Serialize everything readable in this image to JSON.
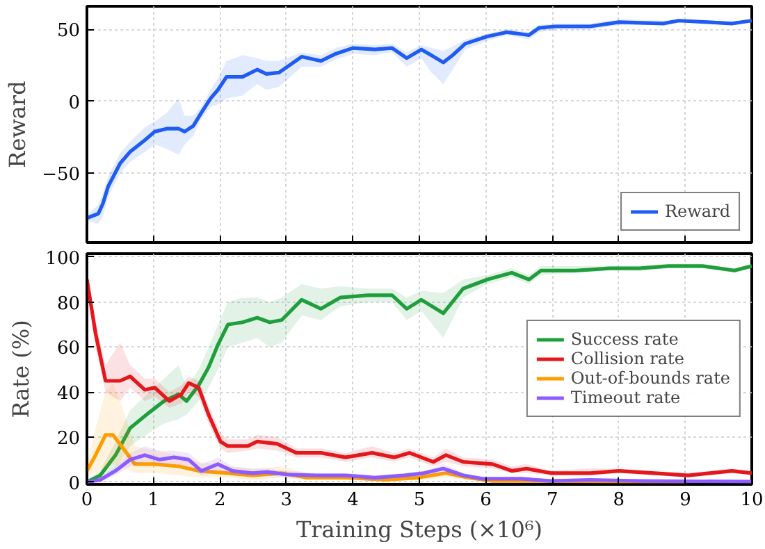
{
  "chart_data": [
    {
      "type": "line",
      "ylabel": "Reward",
      "xlim": [
        0,
        10
      ],
      "xticks": [
        0,
        1,
        2,
        3,
        4,
        5,
        6,
        7,
        8,
        9,
        10
      ],
      "ylim": [
        -98,
        66
      ],
      "yticks": [
        -50,
        0,
        50
      ],
      "tick_labels": "y",
      "grid": true,
      "legend": "bottom right",
      "line_style": "solid",
      "marker": "none",
      "series": [
        {
          "name": "Reward",
          "color": "#1f5cf2",
          "x": [
            0,
            0.17,
            0.24,
            0.32,
            0.5,
            0.65,
            0.87,
            1.02,
            1.2,
            1.38,
            1.47,
            1.6,
            1.72,
            1.86,
            1.97,
            2.1,
            2.34,
            2.56,
            2.7,
            2.89,
            3.23,
            3.52,
            3.74,
            4.0,
            4.33,
            4.59,
            4.81,
            5.03,
            5.18,
            5.36,
            5.5,
            5.69,
            6.02,
            6.32,
            6.65,
            6.8,
            7.05,
            7.57,
            8.0,
            8.67,
            8.9,
            9.34,
            9.7,
            10
          ],
          "values": [
            -81,
            -78,
            -71,
            -59,
            -43,
            -35,
            -27,
            -21,
            -19,
            -19,
            -21,
            -17,
            -8,
            2,
            8,
            17,
            17,
            22,
            19,
            20,
            31,
            28,
            33,
            37,
            36,
            37,
            30,
            36,
            32,
            27,
            32,
            40,
            45,
            48,
            46,
            51,
            52,
            52,
            55,
            54,
            56,
            55,
            54,
            56
          ],
          "lower": [
            -83,
            -85,
            -80,
            -66,
            -50,
            -42,
            -35,
            -30,
            -33,
            -37,
            -30,
            -24,
            -12,
            -4,
            -2,
            2,
            4,
            12,
            8,
            10,
            24,
            24,
            29,
            33,
            32,
            34,
            24,
            30,
            20,
            12,
            22,
            36,
            42,
            46,
            43,
            48,
            50,
            50,
            53,
            53,
            55,
            54,
            53,
            55
          ],
          "upper": [
            -79,
            -72,
            -64,
            -52,
            -36,
            -28,
            -18,
            -14,
            -8,
            2,
            -10,
            -10,
            -4,
            8,
            16,
            28,
            32,
            30,
            28,
            28,
            34,
            32,
            37,
            40,
            39,
            40,
            34,
            39,
            37,
            35,
            38,
            43,
            47,
            50,
            48,
            53,
            54,
            54,
            57,
            56,
            57,
            56,
            55,
            57
          ]
        }
      ]
    },
    {
      "type": "line",
      "xlabel": "Training Steps (×10⁶)",
      "ylabel": "Rate (%)",
      "xlim": [
        0,
        10
      ],
      "xticks": [
        0,
        1,
        2,
        3,
        4,
        5,
        6,
        7,
        8,
        9,
        10
      ],
      "ylim": [
        -1,
        101.5
      ],
      "yticks": [
        0,
        20,
        40,
        60,
        80,
        100
      ],
      "grid": true,
      "legend": "right",
      "line_style": "solid",
      "marker": "none",
      "series": [
        {
          "name": "Success rate",
          "color": "#1f9e3c",
          "x": [
            0,
            0.2,
            0.43,
            0.65,
            0.94,
            1.16,
            1.38,
            1.5,
            1.68,
            1.83,
            1.97,
            2.12,
            2.34,
            2.56,
            2.75,
            2.93,
            3.23,
            3.52,
            3.81,
            4.22,
            4.59,
            4.81,
            5.03,
            5.36,
            5.66,
            6.02,
            6.39,
            6.65,
            6.83,
            7.35,
            7.86,
            8.31,
            8.75,
            9.26,
            9.74,
            10
          ],
          "values": [
            0,
            3,
            12,
            24,
            31,
            36,
            39,
            36,
            43,
            51,
            61,
            70,
            71,
            73,
            71,
            72,
            81,
            77,
            82,
            83,
            83,
            77,
            81,
            75,
            86,
            90,
            93,
            90,
            94,
            94,
            95,
            95,
            96,
            96,
            94,
            96
          ],
          "lower": [
            0,
            1,
            6,
            16,
            22,
            26,
            28,
            30,
            36,
            42,
            50,
            60,
            62,
            64,
            60,
            62,
            74,
            72,
            78,
            80,
            80,
            72,
            76,
            64,
            82,
            88,
            91,
            88,
            92,
            93,
            94,
            94,
            95,
            95,
            93,
            95
          ],
          "upper": [
            1,
            5,
            18,
            32,
            40,
            46,
            52,
            42,
            50,
            60,
            70,
            80,
            82,
            82,
            80,
            82,
            88,
            86,
            87,
            86,
            86,
            82,
            85,
            84,
            90,
            92,
            95,
            92,
            96,
            96,
            96,
            96,
            97,
            97,
            95,
            97
          ]
        },
        {
          "name": "Collision rate",
          "color": "#e3171c",
          "x": [
            0,
            0.13,
            0.28,
            0.5,
            0.65,
            0.87,
            1.02,
            1.24,
            1.42,
            1.53,
            1.68,
            1.83,
            2.01,
            2.12,
            2.42,
            2.56,
            2.86,
            3.15,
            3.52,
            3.89,
            4.29,
            4.62,
            4.85,
            5.21,
            5.4,
            5.66,
            6.1,
            6.39,
            6.61,
            6.98,
            7.57,
            8.0,
            8.53,
            9.04,
            9.7,
            10
          ],
          "values": [
            90,
            66,
            45,
            45,
            47,
            41,
            42,
            36,
            39,
            44,
            42,
            30,
            18,
            16,
            16,
            18,
            17,
            13,
            13,
            11,
            13,
            11,
            13,
            9,
            12,
            9,
            8,
            5,
            6,
            4,
            4,
            5,
            4,
            3,
            5,
            4
          ],
          "lower": [
            88,
            60,
            40,
            36,
            42,
            36,
            38,
            33,
            35,
            40,
            38,
            26,
            15,
            13,
            14,
            15,
            14,
            11,
            11,
            9,
            11,
            9,
            11,
            7,
            9,
            7,
            6,
            4,
            4,
            3,
            3,
            4,
            3,
            2,
            4,
            3
          ],
          "upper": [
            92,
            72,
            52,
            62,
            52,
            46,
            46,
            40,
            43,
            47,
            45,
            34,
            22,
            19,
            19,
            21,
            20,
            15,
            15,
            13,
            16,
            13,
            15,
            11,
            15,
            11,
            10,
            7,
            8,
            5,
            6,
            6,
            5,
            4,
            6,
            5
          ]
        },
        {
          "name": "Out-of-bounds rate",
          "color": "#ff9c00",
          "x": [
            0,
            0.13,
            0.28,
            0.39,
            0.57,
            0.72,
            1.02,
            1.38,
            1.68,
            2.12,
            2.49,
            2.93,
            3.3,
            3.89,
            4.48,
            4.99,
            5.4,
            5.73,
            6.1,
            6.83,
            8.0,
            9.0
          ],
          "values": [
            5,
            12,
            21,
            21,
            14,
            8,
            8,
            7,
            5,
            4,
            3,
            4,
            2,
            2,
            1,
            2,
            4,
            2,
            0.5,
            0.5,
            0.3,
            0.2
          ],
          "lower": [
            3,
            4,
            6,
            8,
            6,
            4,
            4,
            3,
            2,
            2,
            1,
            2,
            1,
            1,
            0.5,
            1,
            2,
            1,
            0,
            0,
            0,
            0
          ],
          "upper": [
            8,
            24,
            40,
            44,
            30,
            16,
            14,
            12,
            9,
            7,
            6,
            7,
            4,
            3,
            2,
            3,
            6,
            3,
            1,
            1,
            0.6,
            0.4
          ]
        },
        {
          "name": "Timeout rate",
          "color": "#8c5cff",
          "x": [
            0,
            0.2,
            0.43,
            0.65,
            0.87,
            1.09,
            1.31,
            1.53,
            1.72,
            1.97,
            2.19,
            2.49,
            2.71,
            3.0,
            3.45,
            3.89,
            4.33,
            4.77,
            5.07,
            5.36,
            5.66,
            5.95,
            6.54,
            6.98,
            7.57,
            8.31,
            10
          ],
          "values": [
            0,
            1,
            5,
            10,
            12,
            10,
            11,
            10,
            5,
            8,
            5,
            4,
            4.5,
            3.4,
            3,
            3,
            2,
            3,
            4,
            6,
            3,
            1.5,
            1.5,
            0.5,
            1,
            0.5,
            0.2
          ],
          "lower": [
            0,
            0,
            3,
            7,
            9,
            8,
            8,
            7,
            3,
            5,
            3,
            3,
            3,
            2,
            2,
            2,
            1,
            2,
            3,
            4,
            2,
            1,
            1,
            0,
            0.5,
            0,
            0
          ],
          "upper": [
            1,
            2,
            7,
            13,
            16,
            14,
            14,
            13,
            8,
            11,
            7,
            6,
            6,
            5,
            4,
            4,
            3,
            4,
            5,
            8,
            4,
            2,
            2,
            1,
            1.5,
            1,
            0.4
          ]
        }
      ]
    }
  ]
}
